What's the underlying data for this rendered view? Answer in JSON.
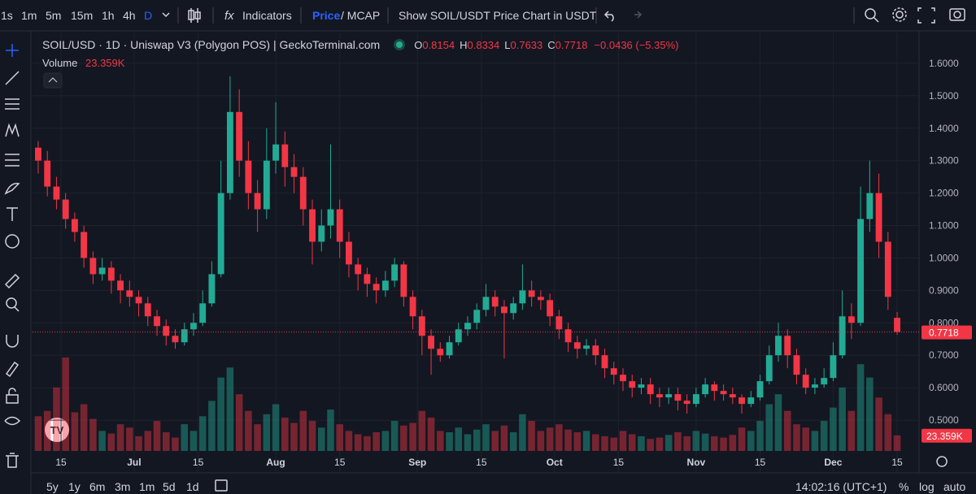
{
  "ui": {
    "intervals": [
      "1s",
      "1m",
      "5m",
      "15m",
      "1h",
      "4h",
      "D"
    ],
    "indicators": "Indicators",
    "price": "Price",
    "mcap": "/ MCAP",
    "show_usdt": "Show SOIL/USDT Price Chart in USDT",
    "ohlc_letters": [
      "O",
      "H",
      "L",
      "C"
    ],
    "change": "−0.0436 (−5.35%)",
    "volume_title": "Volume",
    "ranges": [
      "5y",
      "1y",
      "6m",
      "3m",
      "1m",
      "5d",
      "1d"
    ],
    "clock": "14:02:16 (UTC+1)",
    "percent": "%",
    "log": "log",
    "auto": "auto"
  },
  "chart_data": {
    "type": "candlestick",
    "title": "SOIL/USD · 1D · Uniswap V3 (Polygon POS) | GeckoTerminal.com",
    "up_color": "#22ab94",
    "down_color": "#f23645",
    "ylim": [
      0.405,
      1.695
    ],
    "yticks": [
      {
        "value": 0.5,
        "label": "0.5000"
      },
      {
        "value": 0.6,
        "label": "0.6000"
      },
      {
        "value": 0.7,
        "label": "0.7000"
      },
      {
        "value": 0.8,
        "label": "0.8000"
      },
      {
        "value": 0.9,
        "label": "0.9000"
      },
      {
        "value": 1.0,
        "label": "1.0000"
      },
      {
        "value": 1.1,
        "label": "1.1000"
      },
      {
        "value": 1.2,
        "label": "1.2000"
      },
      {
        "value": 1.3,
        "label": "1.3000"
      },
      {
        "value": 1.4,
        "label": "1.4000"
      },
      {
        "value": 1.5,
        "label": "1.5000"
      },
      {
        "value": 1.6,
        "label": "1.6000"
      }
    ],
    "xlim": [
      -0.62,
      96.4
    ],
    "xticks": [
      {
        "value": 2.5,
        "label": "15"
      },
      {
        "value": 10.5,
        "label": "Jul"
      },
      {
        "value": 17.5,
        "label": "15"
      },
      {
        "value": 26,
        "label": "Aug"
      },
      {
        "value": 33,
        "label": "15"
      },
      {
        "value": 41.5,
        "label": "Sep"
      },
      {
        "value": 48.5,
        "label": "15"
      },
      {
        "value": 56.5,
        "label": "Oct"
      },
      {
        "value": 63.5,
        "label": "15"
      },
      {
        "value": 72,
        "label": "Nov"
      },
      {
        "value": 79,
        "label": "15"
      },
      {
        "value": 87,
        "label": "Dec"
      },
      {
        "value": 94,
        "label": "15"
      }
    ],
    "candles": [
      [
        1.34,
        1.36,
        1.26,
        1.3
      ],
      [
        1.3,
        1.33,
        1.19,
        1.22
      ],
      [
        1.22,
        1.25,
        1.15,
        1.18
      ],
      [
        1.18,
        1.2,
        1.09,
        1.12
      ],
      [
        1.12,
        1.14,
        1.05,
        1.08
      ],
      [
        1.08,
        1.1,
        0.97,
        1.0
      ],
      [
        1.0,
        1.02,
        0.92,
        0.95
      ],
      [
        0.95,
        1.0,
        0.93,
        0.97
      ],
      [
        0.97,
        0.99,
        0.89,
        0.93
      ],
      [
        0.93,
        0.95,
        0.86,
        0.9
      ],
      [
        0.9,
        0.93,
        0.85,
        0.88
      ],
      [
        0.88,
        0.9,
        0.82,
        0.86
      ],
      [
        0.86,
        0.88,
        0.79,
        0.82
      ],
      [
        0.82,
        0.84,
        0.76,
        0.79
      ],
      [
        0.79,
        0.81,
        0.73,
        0.76
      ],
      [
        0.76,
        0.78,
        0.72,
        0.74
      ],
      [
        0.74,
        0.8,
        0.73,
        0.78
      ],
      [
        0.78,
        0.83,
        0.76,
        0.8
      ],
      [
        0.8,
        0.9,
        0.79,
        0.86
      ],
      [
        0.86,
        0.99,
        0.85,
        0.95
      ],
      [
        0.95,
        1.3,
        0.94,
        1.2
      ],
      [
        1.2,
        1.56,
        1.18,
        1.45
      ],
      [
        1.45,
        1.52,
        1.25,
        1.3
      ],
      [
        1.3,
        1.36,
        1.15,
        1.2
      ],
      [
        1.2,
        1.24,
        1.08,
        1.15
      ],
      [
        1.15,
        1.4,
        1.12,
        1.3
      ],
      [
        1.3,
        1.48,
        1.26,
        1.35
      ],
      [
        1.35,
        1.39,
        1.22,
        1.28
      ],
      [
        1.28,
        1.32,
        1.2,
        1.25
      ],
      [
        1.25,
        1.28,
        1.1,
        1.15
      ],
      [
        1.15,
        1.18,
        0.98,
        1.05
      ],
      [
        1.05,
        1.15,
        1.02,
        1.1
      ],
      [
        1.1,
        1.35,
        1.06,
        1.15
      ],
      [
        1.15,
        1.18,
        1.0,
        1.05
      ],
      [
        1.05,
        1.08,
        0.94,
        0.98
      ],
      [
        0.98,
        1.0,
        0.9,
        0.95
      ],
      [
        0.95,
        0.97,
        0.88,
        0.92
      ],
      [
        0.92,
        0.94,
        0.86,
        0.9
      ],
      [
        0.9,
        0.96,
        0.88,
        0.93
      ],
      [
        0.93,
        1.0,
        0.91,
        0.98
      ],
      [
        0.98,
        0.99,
        0.85,
        0.88
      ],
      [
        0.88,
        0.9,
        0.78,
        0.82
      ],
      [
        0.82,
        0.84,
        0.7,
        0.76
      ],
      [
        0.76,
        0.78,
        0.64,
        0.72
      ],
      [
        0.72,
        0.74,
        0.68,
        0.7
      ],
      [
        0.7,
        0.76,
        0.69,
        0.74
      ],
      [
        0.74,
        0.8,
        0.73,
        0.78
      ],
      [
        0.78,
        0.82,
        0.76,
        0.8
      ],
      [
        0.8,
        0.86,
        0.78,
        0.84
      ],
      [
        0.84,
        0.92,
        0.82,
        0.88
      ],
      [
        0.88,
        0.9,
        0.82,
        0.85
      ],
      [
        0.85,
        0.87,
        0.69,
        0.83
      ],
      [
        0.83,
        0.88,
        0.81,
        0.86
      ],
      [
        0.86,
        0.98,
        0.84,
        0.9
      ],
      [
        0.9,
        0.93,
        0.85,
        0.88
      ],
      [
        0.88,
        0.9,
        0.84,
        0.87
      ],
      [
        0.87,
        0.89,
        0.79,
        0.82
      ],
      [
        0.82,
        0.84,
        0.75,
        0.78
      ],
      [
        0.78,
        0.8,
        0.71,
        0.74
      ],
      [
        0.74,
        0.76,
        0.69,
        0.72
      ],
      [
        0.72,
        0.75,
        0.7,
        0.73
      ],
      [
        0.73,
        0.75,
        0.67,
        0.7
      ],
      [
        0.7,
        0.72,
        0.63,
        0.66
      ],
      [
        0.66,
        0.68,
        0.61,
        0.64
      ],
      [
        0.64,
        0.66,
        0.59,
        0.62
      ],
      [
        0.62,
        0.64,
        0.57,
        0.6
      ],
      [
        0.6,
        0.63,
        0.58,
        0.61
      ],
      [
        0.61,
        0.63,
        0.55,
        0.58
      ],
      [
        0.58,
        0.6,
        0.54,
        0.57
      ],
      [
        0.57,
        0.6,
        0.55,
        0.58
      ],
      [
        0.58,
        0.6,
        0.53,
        0.56
      ],
      [
        0.56,
        0.58,
        0.52,
        0.55
      ],
      [
        0.55,
        0.6,
        0.54,
        0.58
      ],
      [
        0.58,
        0.63,
        0.57,
        0.61
      ],
      [
        0.61,
        0.62,
        0.56,
        0.59
      ],
      [
        0.59,
        0.61,
        0.56,
        0.58
      ],
      [
        0.58,
        0.6,
        0.55,
        0.57
      ],
      [
        0.57,
        0.58,
        0.52,
        0.55
      ],
      [
        0.55,
        0.59,
        0.54,
        0.57
      ],
      [
        0.57,
        0.64,
        0.56,
        0.62
      ],
      [
        0.62,
        0.73,
        0.61,
        0.7
      ],
      [
        0.7,
        0.8,
        0.68,
        0.76
      ],
      [
        0.76,
        0.78,
        0.66,
        0.7
      ],
      [
        0.7,
        0.72,
        0.61,
        0.64
      ],
      [
        0.64,
        0.66,
        0.58,
        0.6
      ],
      [
        0.6,
        0.63,
        0.58,
        0.61
      ],
      [
        0.61,
        0.66,
        0.6,
        0.63
      ],
      [
        0.63,
        0.74,
        0.62,
        0.7
      ],
      [
        0.7,
        0.9,
        0.69,
        0.82
      ],
      [
        0.82,
        0.86,
        0.75,
        0.8
      ],
      [
        0.8,
        1.22,
        0.79,
        1.12
      ],
      [
        1.12,
        1.3,
        1.08,
        1.2
      ],
      [
        1.2,
        1.26,
        1.0,
        1.05
      ],
      [
        1.05,
        1.08,
        0.84,
        0.88
      ],
      [
        0.8154,
        0.8334,
        0.7633,
        0.7718
      ]
    ],
    "volume": [
      52000,
      60000,
      95000,
      140000,
      58000,
      70000,
      48000,
      30000,
      26000,
      40000,
      35000,
      22000,
      30000,
      45000,
      28000,
      20000,
      40000,
      30000,
      52000,
      75000,
      110000,
      125000,
      85000,
      60000,
      40000,
      55000,
      70000,
      50000,
      42000,
      60000,
      45000,
      35000,
      62000,
      40000,
      30000,
      25000,
      22000,
      28000,
      30000,
      45000,
      38000,
      42000,
      60000,
      50000,
      30000,
      28000,
      35000,
      25000,
      32000,
      40000,
      30000,
      38000,
      28000,
      55000,
      45000,
      30000,
      35000,
      40000,
      32000,
      28000,
      30000,
      25000,
      22000,
      20000,
      30000,
      25000,
      22000,
      18000,
      20000,
      24000,
      28000,
      22000,
      30000,
      26000,
      22000,
      20000,
      24000,
      35000,
      30000,
      45000,
      70000,
      85000,
      60000,
      40000,
      35000,
      30000,
      45000,
      65000,
      95000,
      60000,
      130000,
      110000,
      80000,
      55000,
      23359
    ],
    "volume_label": "23.359K"
  }
}
